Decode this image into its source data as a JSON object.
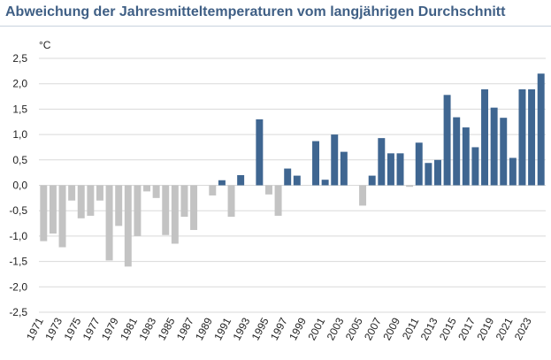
{
  "chart_data": {
    "type": "bar",
    "title": "Abweichung der Jahresmitteltemperaturen vom langjährigen Durchschnitt",
    "unit_label": "°C",
    "ylim": [
      -2.5,
      2.5
    ],
    "y_ticks": [
      "2,5",
      "2,0",
      "1,5",
      "1,0",
      "0,5",
      "0,0",
      "-0,5",
      "-1,0",
      "-1,5",
      "-2,0",
      "-2,5"
    ],
    "x_tick_labels": [
      "1971",
      "1973",
      "1975",
      "1977",
      "1979",
      "1981",
      "1983",
      "1985",
      "1987",
      "1989",
      "1991",
      "1993",
      "1995",
      "1997",
      "1999",
      "2001",
      "2003",
      "2005",
      "2007",
      "2009",
      "2011",
      "2013",
      "2015",
      "2017",
      "2019",
      "2021",
      "2023"
    ],
    "grid": "horizontal",
    "colors": {
      "negative": "#c3c3c3",
      "positive": "#3f6691",
      "grid": "#d9d9d9"
    },
    "categories": [
      "1971",
      "1972",
      "1973",
      "1974",
      "1975",
      "1976",
      "1977",
      "1978",
      "1979",
      "1980",
      "1981",
      "1982",
      "1983",
      "1984",
      "1985",
      "1986",
      "1987",
      "1988",
      "1989",
      "1990",
      "1991",
      "1992",
      "1993",
      "1994",
      "1995",
      "1996",
      "1997",
      "1998",
      "1999",
      "2000",
      "2001",
      "2002",
      "2003",
      "2004",
      "2005",
      "2006",
      "2007",
      "2008",
      "2009",
      "2010",
      "2011",
      "2012",
      "2013",
      "2014",
      "2015",
      "2016",
      "2017",
      "2018",
      "2019",
      "2020",
      "2021",
      "2022",
      "2023",
      "2024"
    ],
    "values": [
      -1.1,
      -0.95,
      -1.22,
      -0.3,
      -0.65,
      -0.6,
      -0.3,
      -1.48,
      -0.8,
      -1.6,
      -1.0,
      -0.12,
      -0.25,
      -0.98,
      -1.15,
      -0.62,
      -0.88,
      0.0,
      -0.2,
      0.1,
      -0.62,
      0.2,
      0.0,
      1.3,
      -0.18,
      -0.6,
      0.33,
      0.19,
      0.0,
      0.87,
      0.11,
      1.0,
      0.66,
      0.0,
      -0.4,
      0.19,
      0.93,
      0.63,
      0.63,
      -0.03,
      0.84,
      0.44,
      0.5,
      1.78,
      1.34,
      1.14,
      0.75,
      1.89,
      1.53,
      1.33,
      0.54,
      1.89,
      1.89,
      2.2
    ]
  }
}
